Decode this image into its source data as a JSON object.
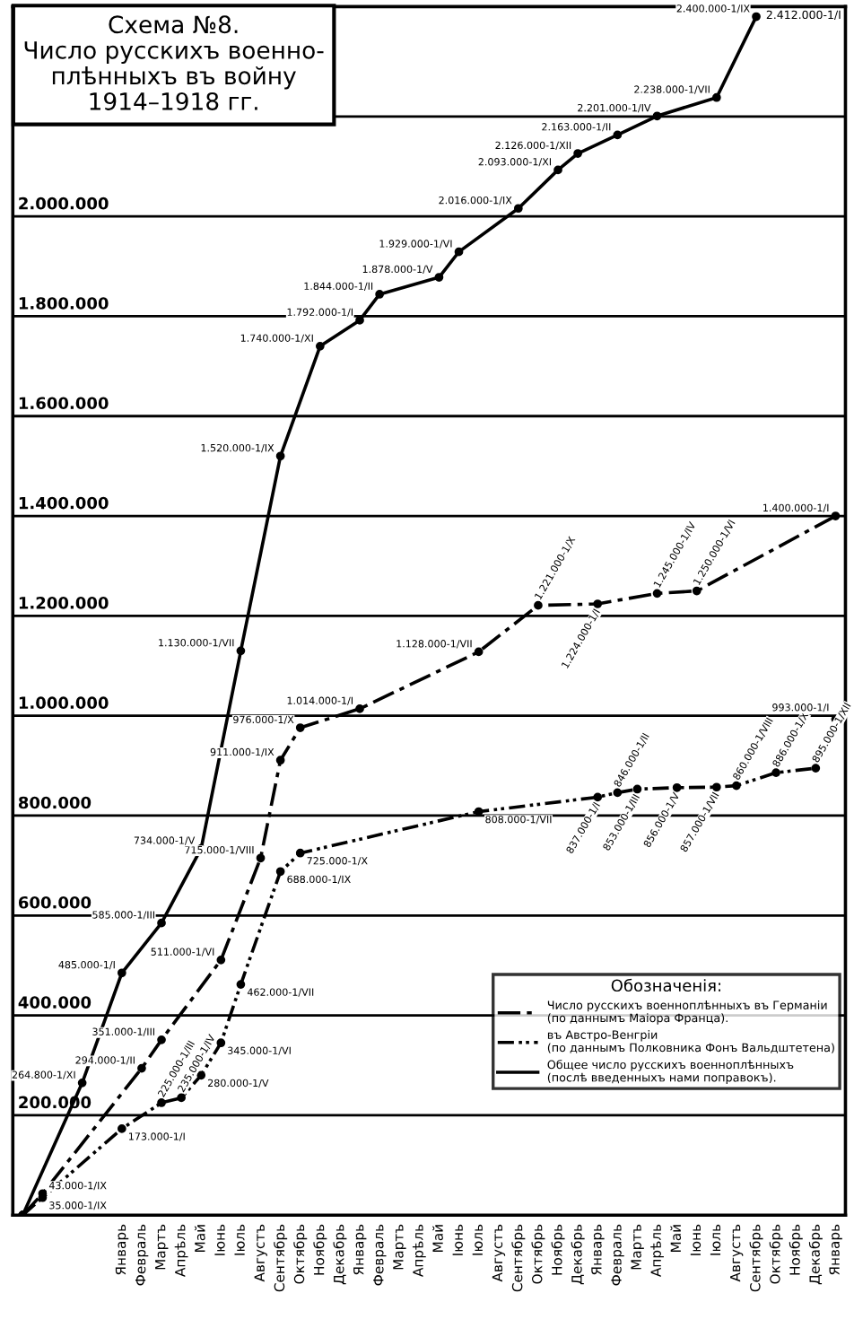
{
  "chart_data": {
    "type": "line",
    "title": "Схема №8.\nЧисло русскихъ военно-\nплѣнныхъ въ войну\n1914–1918 гг.",
    "legend_title": "Обозначенія:",
    "categories": [
      null,
      null,
      null,
      null,
      null,
      "Январь",
      "Февраль",
      "Мартъ",
      "Апрѣль",
      "Май",
      "Іюнь",
      "Іюль",
      "Августъ",
      "Сентябрь",
      "Октябрь",
      "Ноябрь",
      "Декабрь",
      "Январь",
      "Февраль",
      "Мартъ",
      "Апрѣль",
      "Май",
      "Іюнь",
      "Іюль",
      "Августъ",
      "Сентябрь",
      "Октябрь",
      "Ноябрь",
      "Декабрь",
      "Январь",
      "Февраль",
      "Мартъ",
      "Апрѣль",
      "Май",
      "Іюнь",
      "Іюль",
      "Августъ",
      "Сентябрь",
      "Октябрь",
      "Ноябрь",
      "Декабрь",
      "Январь"
    ],
    "ylim": [
      0,
      2420000
    ],
    "yticks": [
      {
        "value": 200000,
        "label": "200.000"
      },
      {
        "value": 400000,
        "label": "400.000"
      },
      {
        "value": 600000,
        "label": "600.000"
      },
      {
        "value": 800000,
        "label": "800.000"
      },
      {
        "value": 1000000,
        "label": "1.000.000"
      },
      {
        "value": 1200000,
        "label": "1.200.000"
      },
      {
        "value": 1400000,
        "label": "1.400.000"
      },
      {
        "value": 1600000,
        "label": "1.600.000"
      },
      {
        "value": 1800000,
        "label": "1.800.000"
      },
      {
        "value": 2000000,
        "label": "2.000.000"
      },
      {
        "value": 2200000,
        "label": null
      }
    ],
    "grid": "y",
    "legend": "bottom right",
    "marker": "circle",
    "series": [
      {
        "name": "Число русскихъ военноплѣнныхъ въ Германіи\n(по даннымъ Маіора Франца).",
        "color": "#000000",
        "line_style": "dashed",
        "values": [
          0,
          43000,
          null,
          null,
          null,
          null,
          294000,
          351000,
          null,
          null,
          511000,
          null,
          715000,
          911000,
          976000,
          null,
          null,
          1014000,
          null,
          null,
          null,
          null,
          null,
          1128000,
          null,
          null,
          1221000,
          null,
          null,
          1224000,
          null,
          null,
          1245000,
          null,
          1250000,
          null,
          null,
          null,
          null,
          null,
          null,
          1400000
        ],
        "value_labels": [
          null,
          "43.000-1/IX",
          null,
          null,
          null,
          null,
          "294.000-1/II",
          "351.000-1/III",
          null,
          null,
          "511.000-1/VI",
          null,
          "715.000-1/VIII",
          "911.000-1/IX",
          "976.000-1/X",
          null,
          null,
          "1.014.000-1/I",
          null,
          null,
          null,
          null,
          null,
          "1.128.000-1/VII",
          null,
          null,
          "1.221.000-1/X",
          null,
          null,
          "1.224.000-1/I",
          null,
          null,
          "1.245.000-1/IV",
          null,
          "1.250.000-1/VI",
          null,
          null,
          null,
          null,
          null,
          null,
          "1.400.000-1/I"
        ]
      },
      {
        "name": "въ Австро-Венгріи\n(по даннымъ Полковника Фонъ Вальдштетена)",
        "color": "#000000",
        "line_style": "dotted",
        "values": [
          0,
          35000,
          null,
          null,
          null,
          173000,
          null,
          225000,
          235000,
          280000,
          345000,
          462000,
          null,
          688000,
          725000,
          null,
          null,
          null,
          null,
          null,
          null,
          null,
          null,
          808000,
          null,
          null,
          null,
          null,
          null,
          837000,
          846000,
          853000,
          null,
          856000,
          null,
          857000,
          860000,
          null,
          886000,
          null,
          895000,
          993000
        ],
        "value_labels": [
          null,
          "35.000-1/IX",
          null,
          null,
          null,
          "173.000-1/I",
          null,
          "225.000-1/III",
          "235.000-1/IV",
          "280.000-1/V",
          "345.000-1/VI",
          "462.000-1/VII",
          null,
          "688.000-1/IX",
          "725.000-1/X",
          null,
          null,
          null,
          null,
          null,
          null,
          null,
          null,
          "808.000-1/VII",
          null,
          null,
          null,
          null,
          null,
          "837.000-1/I",
          "846.000-1/II",
          "853.000-1/III",
          null,
          "856.000-1/V",
          null,
          "857.000-1/VII",
          "860.000-1/VIII",
          null,
          "886.000-1/X",
          null,
          "895.000-1/XII",
          "993.000-1/I"
        ]
      },
      {
        "name": "Общее число русскихъ военноплѣнныхъ\n(послѣ введенныхъ нами поправокъ).",
        "color": "#000000",
        "line_style": "solid",
        "values": [
          0,
          null,
          null,
          264800,
          null,
          485000,
          null,
          585000,
          null,
          734000,
          null,
          1130000,
          null,
          1520000,
          null,
          1740000,
          null,
          1792000,
          1844000,
          null,
          null,
          1878000,
          1929000,
          null,
          null,
          2016000,
          null,
          2093000,
          2126000,
          null,
          2163000,
          null,
          2201000,
          null,
          null,
          2238000,
          null,
          2400000,
          null,
          null,
          null,
          null
        ],
        "value_labels": [
          null,
          null,
          null,
          "264.800-1/XI",
          null,
          "485.000-1/I",
          null,
          "585.000-1/III",
          null,
          "734.000-1/V",
          null,
          "1.130.000-1/VII",
          null,
          "1.520.000-1/IX",
          null,
          "1.740.000-1/XI",
          null,
          "1.792.000-1/I",
          "1.844.000-1/II",
          null,
          null,
          "1.878.000-1/V",
          "1.929.000-1/VI",
          null,
          null,
          "2.016.000-1/IX",
          null,
          "2.093.000-1/XI",
          "2.126.000-1/XII",
          null,
          "2.163.000-1/II",
          null,
          "2.201.000-1/IV",
          null,
          null,
          "2.238.000-1/VII",
          null,
          "2.400.000-1/IX",
          null,
          null,
          null,
          null
        ]
      }
    ],
    "annotations": [
      "2.412.000-1/I"
    ]
  }
}
